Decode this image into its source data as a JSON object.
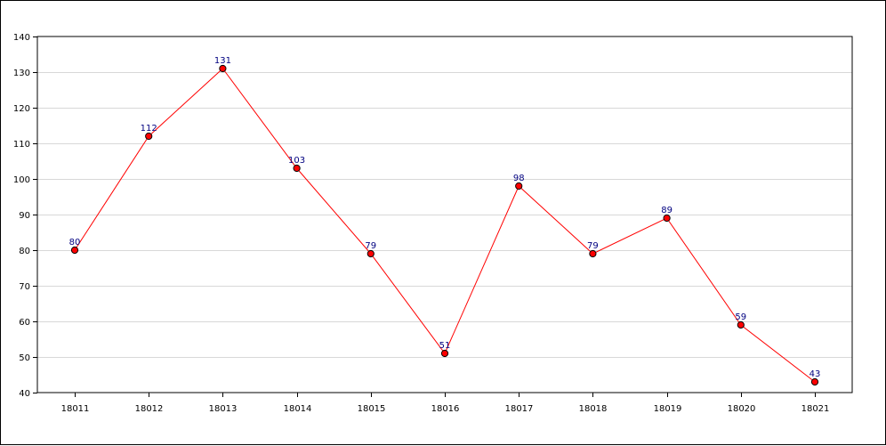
{
  "chart_data": {
    "type": "line",
    "title": "",
    "xlabel": "",
    "ylabel": "",
    "categories": [
      "18011",
      "18012",
      "18013",
      "18014",
      "18015",
      "18016",
      "18017",
      "18018",
      "18019",
      "18020",
      "18021"
    ],
    "series": [
      {
        "values": [
          80,
          112,
          131,
          103,
          79,
          51,
          98,
          79,
          89,
          59,
          43
        ],
        "color": "#ff0000",
        "marker_color": "#ff0000"
      }
    ],
    "ylim": [
      40,
      140
    ],
    "yticks": [
      40,
      50,
      60,
      70,
      80,
      90,
      100,
      110,
      120,
      130,
      140
    ],
    "grid": "horizontal",
    "data_labels": true,
    "colors": {
      "line": "#ff0000",
      "marker": "#ff0000",
      "data_label": "#000080",
      "grid": "#d8d8d8",
      "axis": "#000000"
    }
  }
}
